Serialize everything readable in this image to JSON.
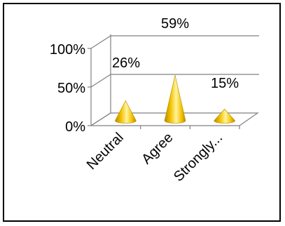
{
  "chart_data": {
    "type": "bar",
    "bar_shape": "cone",
    "style": "3d",
    "categories": [
      "Neutral",
      "Agree",
      "Strongly..."
    ],
    "values": [
      26,
      59,
      15
    ],
    "value_labels": [
      "26%",
      "59%",
      "15%"
    ],
    "y_ticks": [
      "0%",
      "50%",
      "100%"
    ],
    "ylim": [
      0,
      100
    ],
    "grid": true,
    "legend": "none",
    "colors": {
      "cone_light": "#fff3a0",
      "cone_mid": "#f5c400",
      "cone_dark": "#b88a00",
      "grid": "#808080",
      "text": "#000000"
    }
  }
}
